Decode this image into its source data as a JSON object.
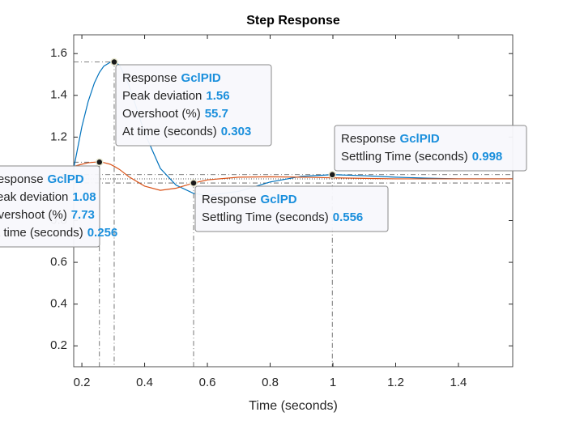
{
  "chart_data": {
    "type": "line",
    "title": "Step Response",
    "x_label": "Time (seconds)",
    "x": [
      0.174,
      0.2,
      0.22,
      0.24,
      0.256,
      0.27,
      0.29,
      0.303,
      0.32,
      0.35,
      0.4,
      0.45,
      0.5,
      0.556,
      0.6,
      0.7,
      0.8,
      0.9,
      0.998,
      1.1,
      1.2,
      1.3,
      1.4,
      1.5,
      1.573
    ],
    "series": [
      {
        "name": "GclPID",
        "color": "#0072bd",
        "values": [
          1.05,
          1.25,
          1.37,
          1.46,
          1.51,
          1.54,
          1.558,
          1.56,
          1.545,
          1.45,
          1.22,
          1.05,
          0.97,
          0.93,
          0.92,
          0.94,
          0.985,
          1.012,
          1.02,
          1.015,
          1.008,
          1.003,
          1.0,
          1.0,
          1.0
        ]
      },
      {
        "name": "GclPD",
        "color": "#d95319",
        "values": [
          1.06,
          1.07,
          1.077,
          1.08,
          1.08,
          1.078,
          1.07,
          1.06,
          1.045,
          1.01,
          0.965,
          0.945,
          0.955,
          0.98,
          0.995,
          1.008,
          1.01,
          1.008,
          1.005,
          1.002,
          1.0,
          1.0,
          1.0,
          1.0,
          1.0
        ]
      }
    ],
    "xlim": [
      0.174,
      1.573
    ],
    "xticks": [
      0.2,
      0.4,
      0.6,
      0.8,
      1,
      1.2,
      1.4
    ],
    "ylim": [
      0.1,
      1.69
    ],
    "yticks": [
      0.2,
      0.4,
      0.6,
      0.8,
      1,
      1.2,
      1.4,
      1.6
    ],
    "grid": false,
    "data_tips": [
      {
        "title": "Response",
        "rows": [
          {
            "label": "Peak deviation",
            "value": 1.56
          },
          {
            "label": "Overshoot (%)",
            "value": 55.7
          },
          {
            "label": "At time (seconds)",
            "value": 0.303
          }
        ]
      },
      {
        "title": "Response",
        "rows": [
          {
            "label": "Peak deviation",
            "value": 1.08
          },
          {
            "label": "Overshoot (%)",
            "value": 7.73
          },
          {
            "label": "At time (seconds)",
            "value": 0.256
          }
        ]
      },
      {
        "title": "Response",
        "rows": [
          {
            "label": "Settling Time (seconds)",
            "value": 0.556
          }
        ]
      },
      {
        "title": "Response",
        "rows": [
          {
            "label": "Settling Time (seconds)",
            "value": 0.998
          }
        ]
      }
    ]
  }
}
